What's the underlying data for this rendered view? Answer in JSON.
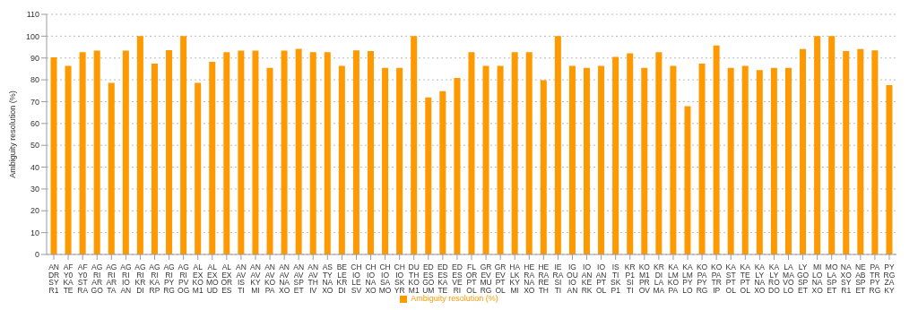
{
  "chart_data": {
    "type": "bar",
    "ylabel": "Ambiguity resolution (%)",
    "categories": [
      "ANDRSYR1",
      "AFY0KATE",
      "AFY0STRA",
      "AGRIARGO",
      "AGRIARTA",
      "AGRIIOAN",
      "AGRIKRDI",
      "AGRIKARP",
      "AGRIPYRG",
      "AGRIPVOG",
      "ALEXKOM1",
      "ALEXMOUD",
      "ALEXORES",
      "ANAVISTI",
      "ANAVKYMI",
      "ANAVKOPA",
      "ANAVNAXO",
      "ANAVSPET",
      "ANAVTHIV",
      "ASTYNAXO",
      "BELEKRDI",
      "CHIOLESV",
      "CHIONAXO",
      "CHIOSAMO",
      "CHIOSKYR",
      "DUTHKOM1",
      "EDESGOUM",
      "EDESKATE",
      "EDESVERI",
      "FLORPTOL",
      "GREVMURG",
      "GREVPTOL",
      "HALKKYMI",
      "HERANAXO",
      "HERARETH",
      "IERASITI",
      "IGOUIOAN",
      "IOANKERK",
      "IOANPTOL",
      "ISTISKP1",
      "KRP1SITI",
      "KOM1PROV",
      "KRDILAMA",
      "KALMKOPA",
      "KALMPYLO",
      "KOPAPYRG",
      "KOPATRIP",
      "KASTPTOL",
      "KATEPTOL",
      "KALYNAXO",
      "KALYRODO",
      "LAMAVOLO",
      "LYGOSPET",
      "MILONAXO",
      "MOLASPET",
      "NAXOSYR1",
      "NEABSPET",
      "PATRPYRG",
      "PYRGZAKY"
    ],
    "series": [
      {
        "name": "Ambiguity resolution (%)",
        "color": "#ff9900",
        "values": [
          90.3,
          86.4,
          92.7,
          93.4,
          78.6,
          93.4,
          100,
          87.4,
          93.6,
          100,
          78.6,
          88.2,
          92.7,
          93.4,
          93.4,
          85.5,
          93.4,
          94.2,
          92.7,
          92.7,
          86.4,
          93.5,
          93.2,
          85.5,
          85.5,
          100,
          71.9,
          74.8,
          80.9,
          92.7,
          86.4,
          86.4,
          92.7,
          92.7,
          79.8,
          100,
          86.4,
          85.5,
          86.4,
          90.5,
          92.1,
          85.5,
          92.7,
          86.4,
          67.9,
          87.4,
          95.7,
          85.5,
          86.4,
          84.5,
          85.5,
          85.5,
          94.1,
          100,
          100,
          93.2,
          94.1,
          93.5,
          77.6
        ]
      }
    ],
    "ylim": [
      0,
      110
    ],
    "yticks": [
      0,
      10,
      20,
      30,
      40,
      50,
      60,
      70,
      80,
      90,
      100,
      110
    ],
    "grid": "y",
    "legend": "bottom"
  }
}
